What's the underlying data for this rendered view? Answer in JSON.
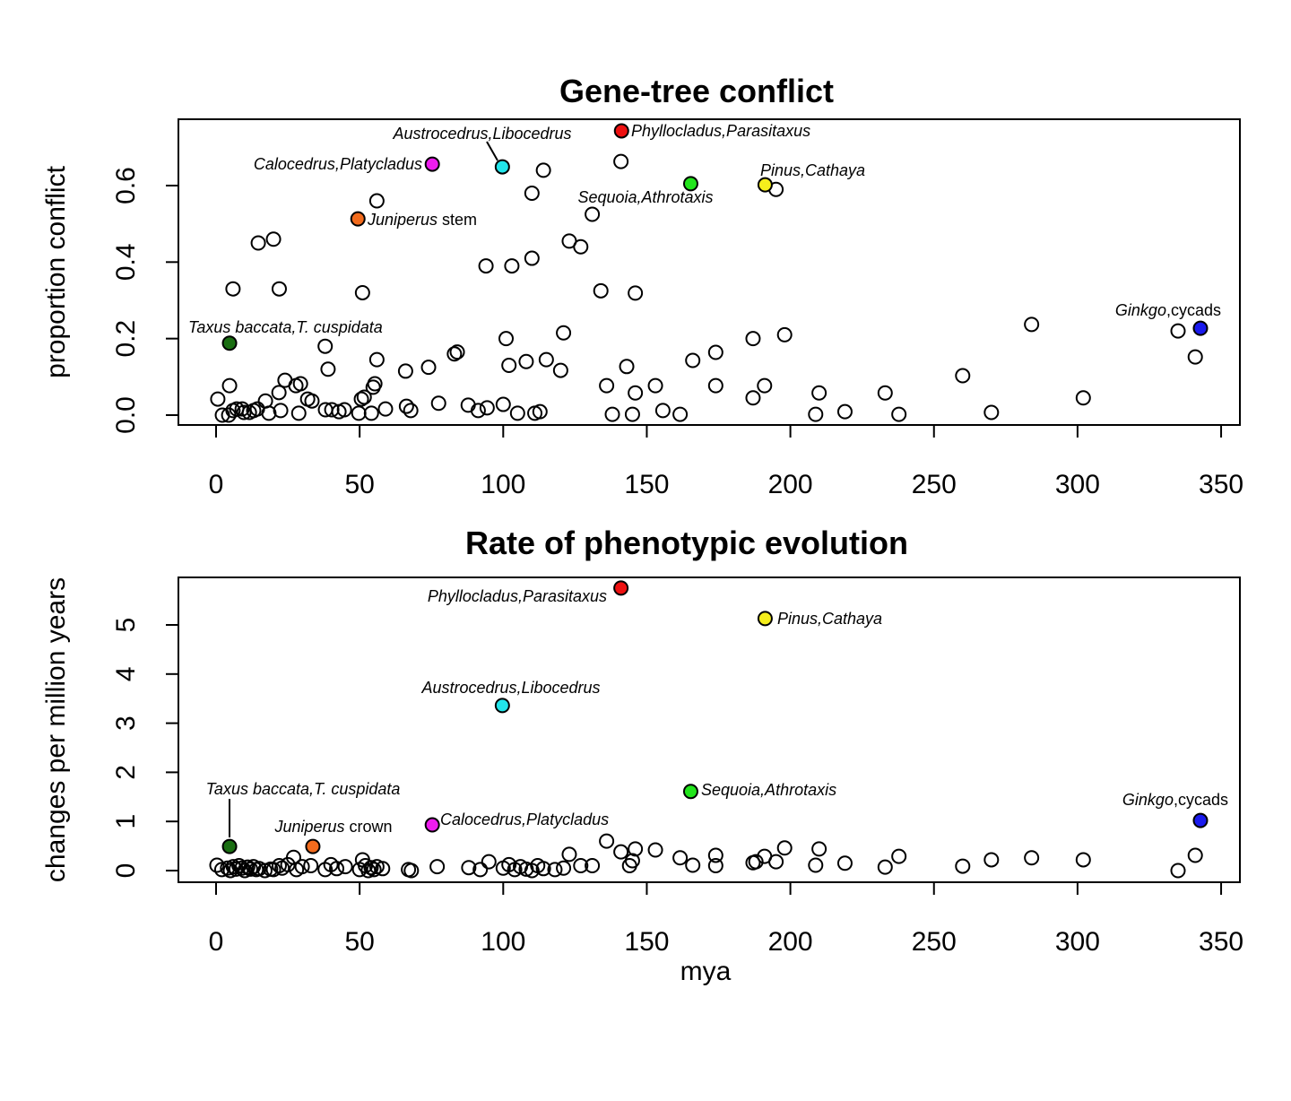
{
  "chart_data": [
    {
      "type": "scatter",
      "title": "Gene-tree conflict",
      "xlabel": "",
      "ylabel": "proportion conflict",
      "xlim": [
        -13,
        357
      ],
      "ylim": [
        -0.025,
        0.775
      ],
      "xticks": [
        "0",
        "50",
        "100",
        "150",
        "200",
        "250",
        "300",
        "350"
      ],
      "yticks": [
        "0.0",
        "0.2",
        "0.4",
        "0.6"
      ],
      "grid": false,
      "points": [
        [
          0.6,
          0.042
        ],
        [
          4.7,
          0.077
        ],
        [
          5.9,
          0.33
        ],
        [
          14.7,
          0.45
        ],
        [
          20,
          0.46
        ],
        [
          22,
          0.33
        ],
        [
          51,
          0.32
        ],
        [
          56,
          0.56
        ],
        [
          38,
          0.18
        ],
        [
          39,
          0.12
        ],
        [
          56,
          0.145
        ],
        [
          66,
          0.115
        ],
        [
          74,
          0.125
        ],
        [
          83,
          0.16
        ],
        [
          84,
          0.165
        ],
        [
          94,
          0.39
        ],
        [
          103,
          0.39
        ],
        [
          101,
          0.2
        ],
        [
          102,
          0.13
        ],
        [
          108,
          0.14
        ],
        [
          110,
          0.41
        ],
        [
          110,
          0.58
        ],
        [
          114,
          0.64
        ],
        [
          115,
          0.145
        ],
        [
          120,
          0.117
        ],
        [
          121,
          0.215
        ],
        [
          123,
          0.455
        ],
        [
          127,
          0.44
        ],
        [
          131,
          0.525
        ],
        [
          134,
          0.325
        ],
        [
          136,
          0.077
        ],
        [
          141,
          0.663
        ],
        [
          143,
          0.127
        ],
        [
          146,
          0.319
        ],
        [
          146,
          0.058
        ],
        [
          153,
          0.077
        ],
        [
          166,
          0.143
        ],
        [
          174,
          0.164
        ],
        [
          174,
          0.077
        ],
        [
          187,
          0.2
        ],
        [
          187,
          0.045
        ],
        [
          191,
          0.077
        ],
        [
          195,
          0.59
        ],
        [
          198,
          0.21
        ],
        [
          210,
          0.058
        ],
        [
          233,
          0.058
        ],
        [
          260,
          0.103
        ],
        [
          284,
          0.237
        ],
        [
          302,
          0.045
        ],
        [
          335,
          0.22
        ],
        [
          341,
          0.152
        ],
        [
          2.2,
          0
        ],
        [
          4.4,
          0
        ],
        [
          5.9,
          0.012
        ],
        [
          7.2,
          0.016
        ],
        [
          9.1,
          0.016
        ],
        [
          9.7,
          0.007
        ],
        [
          11.6,
          0.007
        ],
        [
          13.1,
          0.012
        ],
        [
          14.4,
          0.016
        ],
        [
          17.2,
          0.037
        ],
        [
          18.4,
          0.005
        ],
        [
          21.9,
          0.059
        ],
        [
          22.5,
          0.012
        ],
        [
          24,
          0.091
        ],
        [
          27.8,
          0.077
        ],
        [
          28.8,
          0.005
        ],
        [
          29.4,
          0.082
        ],
        [
          31.9,
          0.042
        ],
        [
          33.4,
          0.037
        ],
        [
          38.1,
          0.014
        ],
        [
          40.3,
          0.014
        ],
        [
          42.8,
          0.009
        ],
        [
          44.7,
          0.014
        ],
        [
          49.7,
          0.005
        ],
        [
          50.6,
          0.042
        ],
        [
          51.6,
          0.047
        ],
        [
          54.1,
          0.005
        ],
        [
          54.7,
          0.073
        ],
        [
          55.3,
          0.082
        ],
        [
          59,
          0.016
        ],
        [
          66.3,
          0.023
        ],
        [
          67.8,
          0.012
        ],
        [
          77.5,
          0.031
        ],
        [
          87.8,
          0.026
        ],
        [
          91.3,
          0.012
        ],
        [
          94.4,
          0.019
        ],
        [
          100,
          0.028
        ],
        [
          105,
          0.005
        ],
        [
          111,
          0.005
        ],
        [
          112.8,
          0.009
        ],
        [
          138,
          0.002
        ],
        [
          145,
          0.002
        ],
        [
          155.6,
          0.012
        ],
        [
          161.6,
          0.002
        ],
        [
          208.8,
          0.002
        ],
        [
          219,
          0.009
        ],
        [
          237.8,
          0.002
        ],
        [
          270,
          0.007
        ]
      ],
      "highlighted": [
        {
          "id": "taxus",
          "x": 4.7,
          "y": 0.188,
          "color": "#1a6e12",
          "label": [
            {
              "t": "Taxus baccata,T. cuspidata",
              "i": true
            }
          ]
        },
        {
          "id": "juniperus",
          "x": 49.4,
          "y": 0.513,
          "color": "#f26b1d",
          "label": [
            {
              "t": "Juniperus",
              "i": true
            },
            {
              "t": " stem",
              "i": false
            }
          ]
        },
        {
          "id": "calocedrus",
          "x": 75.3,
          "y": 0.656,
          "color": "#ee1cee",
          "label": [
            {
              "t": "Calocedrus,Platycladus",
              "i": true
            }
          ]
        },
        {
          "id": "austrocedrus",
          "x": 99.7,
          "y": 0.649,
          "color": "#22e5ea",
          "label": [
            {
              "t": "Austrocedrus,Libocedrus",
              "i": true
            }
          ]
        },
        {
          "id": "phyllocladus",
          "x": 141.2,
          "y": 0.743,
          "color": "#ee1111",
          "label": [
            {
              "t": "Phyllocladus,Parasitaxus",
              "i": true
            }
          ]
        },
        {
          "id": "sequoia",
          "x": 165.3,
          "y": 0.605,
          "color": "#22e51c",
          "label": [
            {
              "t": "Sequoia,Athrotaxis",
              "i": true
            }
          ]
        },
        {
          "id": "pinus",
          "x": 191.2,
          "y": 0.602,
          "color": "#f5ee1c",
          "label": [
            {
              "t": "Pinus,Cathaya",
              "i": true
            }
          ]
        },
        {
          "id": "ginkgo",
          "x": 342.8,
          "y": 0.227,
          "color": "#1a1aee",
          "label": [
            {
              "t": "Ginkgo",
              "i": true
            },
            {
              "t": ",cycads",
              "i": false
            }
          ]
        }
      ]
    },
    {
      "type": "scatter",
      "title": "Rate of phenotypic evolution",
      "xlabel": "mya",
      "ylabel": "changes per million years",
      "xlim": [
        -13,
        357
      ],
      "ylim": [
        -0.23,
        5.98
      ],
      "xticks": [
        "0",
        "50",
        "100",
        "150",
        "200",
        "250",
        "300",
        "350"
      ],
      "yticks": [
        "0",
        "1",
        "2",
        "3",
        "4",
        "5"
      ],
      "grid": false,
      "points": [
        [
          0.3,
          0.11
        ],
        [
          27,
          0.27
        ],
        [
          51,
          0.22
        ],
        [
          95,
          0.18
        ],
        [
          123,
          0.33
        ],
        [
          136,
          0.6
        ],
        [
          141,
          0.38
        ],
        [
          146,
          0.44
        ],
        [
          153,
          0.42
        ],
        [
          161.6,
          0.26
        ],
        [
          166,
          0.11
        ],
        [
          174,
          0.31
        ],
        [
          174,
          0.1
        ],
        [
          187,
          0.16
        ],
        [
          188,
          0.18
        ],
        [
          191,
          0.29
        ],
        [
          195,
          0.18
        ],
        [
          198,
          0.46
        ],
        [
          208.8,
          0.11
        ],
        [
          210,
          0.44
        ],
        [
          219,
          0.15
        ],
        [
          233,
          0.07
        ],
        [
          237.8,
          0.29
        ],
        [
          260,
          0.09
        ],
        [
          270,
          0.22
        ],
        [
          284,
          0.26
        ],
        [
          302,
          0.22
        ],
        [
          335,
          0
        ],
        [
          341,
          0.31
        ],
        [
          2,
          0.02
        ],
        [
          4,
          0.05
        ],
        [
          5,
          0
        ],
        [
          6,
          0.08
        ],
        [
          7,
          0.03
        ],
        [
          8,
          0.1
        ],
        [
          9,
          0.05
        ],
        [
          10,
          0
        ],
        [
          11,
          0.07
        ],
        [
          12,
          0.03
        ],
        [
          13,
          0.08
        ],
        [
          14,
          0.02
        ],
        [
          15,
          0.04
        ],
        [
          17,
          0
        ],
        [
          19,
          0.03
        ],
        [
          20,
          0.02
        ],
        [
          22,
          0.1
        ],
        [
          23,
          0.05
        ],
        [
          25,
          0.12
        ],
        [
          28,
          0.02
        ],
        [
          30,
          0.08
        ],
        [
          33,
          0.1
        ],
        [
          38,
          0.02
        ],
        [
          40,
          0.12
        ],
        [
          42,
          0.04
        ],
        [
          45,
          0.08
        ],
        [
          50,
          0.02
        ],
        [
          52,
          0.1
        ],
        [
          53,
          0
        ],
        [
          54,
          0.06
        ],
        [
          55,
          0.02
        ],
        [
          56,
          0.08
        ],
        [
          58,
          0.04
        ],
        [
          67,
          0.02
        ],
        [
          68,
          0
        ],
        [
          77,
          0.08
        ],
        [
          88,
          0.06
        ],
        [
          92,
          0.02
        ],
        [
          100,
          0.05
        ],
        [
          102,
          0.12
        ],
        [
          104,
          0.02
        ],
        [
          106,
          0.08
        ],
        [
          108,
          0.03
        ],
        [
          110,
          0
        ],
        [
          112,
          0.1
        ],
        [
          114,
          0.04
        ],
        [
          118,
          0.02
        ],
        [
          121,
          0.05
        ],
        [
          127,
          0.1
        ],
        [
          131,
          0.1
        ],
        [
          144,
          0.1
        ],
        [
          145,
          0.2
        ]
      ],
      "highlighted": [
        {
          "id": "taxus",
          "x": 4.7,
          "y": 0.49,
          "color": "#1a6e12",
          "label": [
            {
              "t": "Taxus baccata,T. cuspidata",
              "i": true
            }
          ]
        },
        {
          "id": "juniperus",
          "x": 33.7,
          "y": 0.49,
          "color": "#f26b1d",
          "label": [
            {
              "t": "Juniperus",
              "i": true
            },
            {
              "t": " crown",
              "i": false
            }
          ]
        },
        {
          "id": "calocedrus",
          "x": 75.3,
          "y": 0.93,
          "color": "#ee1cee",
          "label": [
            {
              "t": "Calocedrus,Platycladus",
              "i": true
            }
          ]
        },
        {
          "id": "austrocedrus",
          "x": 99.7,
          "y": 3.36,
          "color": "#22e5ea",
          "label": [
            {
              "t": "Austrocedrus,Libocedrus",
              "i": true
            }
          ]
        },
        {
          "id": "phyllocladus",
          "x": 141,
          "y": 5.75,
          "color": "#ee1111",
          "label": [
            {
              "t": "Phyllocladus,Parasitaxus",
              "i": true
            }
          ]
        },
        {
          "id": "sequoia",
          "x": 165.3,
          "y": 1.61,
          "color": "#22e51c",
          "label": [
            {
              "t": "Sequoia,Athrotaxis",
              "i": true
            }
          ]
        },
        {
          "id": "pinus",
          "x": 191.2,
          "y": 5.13,
          "color": "#f5ee1c",
          "label": [
            {
              "t": "Pinus,Cathaya",
              "i": true
            }
          ]
        },
        {
          "id": "ginkgo",
          "x": 342.8,
          "y": 1.02,
          "color": "#1a1aee",
          "label": [
            {
              "t": "Ginkgo",
              "i": true
            },
            {
              "t": ",cycads",
              "i": false
            }
          ]
        }
      ]
    }
  ]
}
